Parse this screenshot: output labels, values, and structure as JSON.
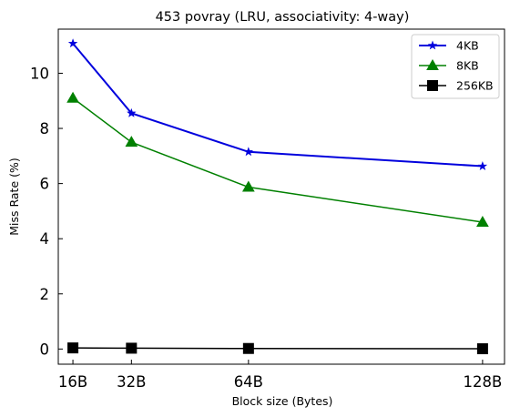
{
  "chart_data": {
    "type": "line",
    "title": "453 povray (LRU, associativity: 4-way)",
    "xlabel": "Block size (Bytes)",
    "ylabel": "Miss Rate (%)",
    "x": [
      16,
      32,
      64,
      128
    ],
    "x_tick_labels": [
      "16B",
      "32B",
      "64B",
      "128B"
    ],
    "xlim": [
      12,
      134
    ],
    "ylim": [
      -0.55,
      11.6
    ],
    "y_ticks": [
      0,
      2,
      4,
      6,
      8,
      10
    ],
    "legend_position": "top-right",
    "grid": false,
    "series": [
      {
        "name": "4KB",
        "values": [
          11.08,
          8.55,
          7.15,
          6.63
        ],
        "color": "#0000dd",
        "marker": "star",
        "line_width": 2
      },
      {
        "name": "8KB",
        "values": [
          9.1,
          7.5,
          5.87,
          4.6
        ],
        "color": "#008000",
        "marker": "triangle",
        "line_width": 1.5
      },
      {
        "name": "256KB",
        "values": [
          0.04,
          0.03,
          0.02,
          0.01
        ],
        "color": "#000000",
        "marker": "square",
        "line_width": 1.5
      }
    ]
  }
}
